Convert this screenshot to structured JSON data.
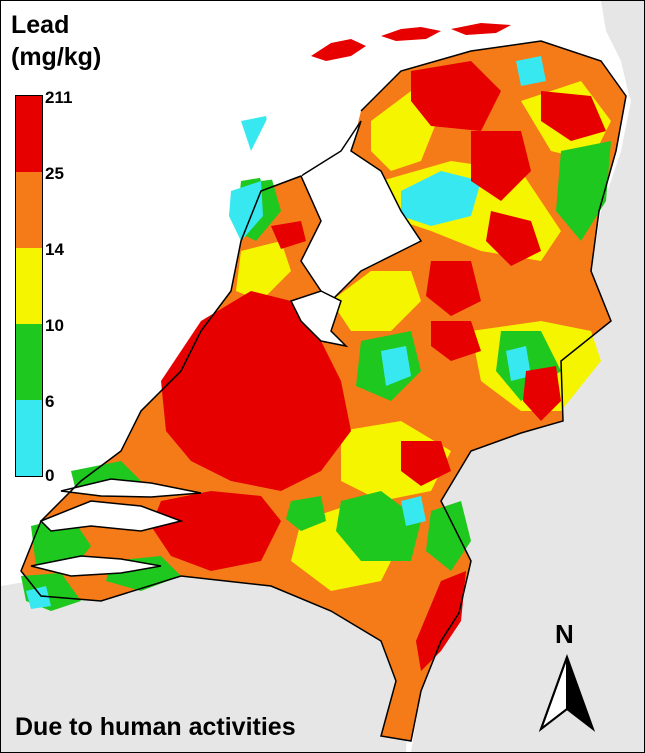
{
  "title_line1": "Lead",
  "title_line2": "(mg/kg)",
  "footer": "Due to human activities",
  "north_label": "N",
  "legend": {
    "ticks": [
      "211",
      "25",
      "14",
      "10",
      "6",
      "0"
    ],
    "colors": [
      "#e60000",
      "#f57a18",
      "#f5f500",
      "#1ec81e",
      "#38e8f0"
    ]
  },
  "colors": {
    "red": "#e60000",
    "orange": "#f57a18",
    "yellow": "#f5f500",
    "green": "#1ec81e",
    "cyan": "#38e8f0",
    "neighbor_land": "#e6e6e6",
    "water": "#ffffff"
  }
}
